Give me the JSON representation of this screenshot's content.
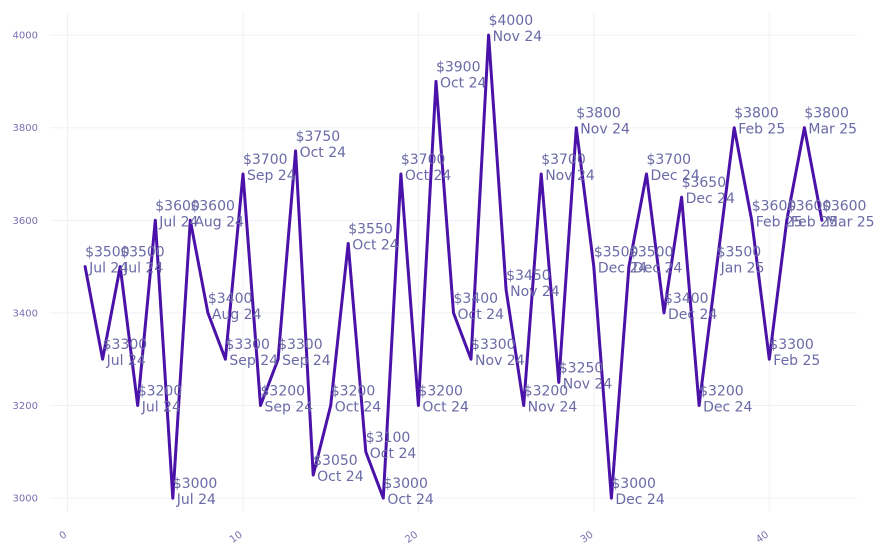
{
  "colors": {
    "line": "#4a12a8",
    "label": "#6b6aa6",
    "tick": "#7a6fb0",
    "grid": "#f0f0f7"
  },
  "chart_data": {
    "type": "line",
    "title": "",
    "xlabel": "",
    "ylabel": "",
    "xlim": [
      -1,
      45
    ],
    "ylim": [
      2970,
      4050
    ],
    "grid": true,
    "legend": "none",
    "x_ticks": [
      0,
      10,
      20,
      30,
      40
    ],
    "y_ticks": [
      3000,
      3200,
      3400,
      3600,
      3800,
      4000
    ],
    "series": [
      {
        "points": [
          {
            "x": 1,
            "y": 3500,
            "value_label": "$3500",
            "date_label": "Jul 24"
          },
          {
            "x": 2,
            "y": 3300,
            "value_label": "$3300",
            "date_label": "Jul 24"
          },
          {
            "x": 3,
            "y": 3500,
            "value_label": "$3500",
            "date_label": "Jul 24"
          },
          {
            "x": 4,
            "y": 3200,
            "value_label": "$3200",
            "date_label": "Jul 24"
          },
          {
            "x": 5,
            "y": 3600,
            "value_label": "$3600",
            "date_label": "Jul 24"
          },
          {
            "x": 6,
            "y": 3000,
            "value_label": "$3000",
            "date_label": "Jul 24"
          },
          {
            "x": 7,
            "y": 3600,
            "value_label": "$3600",
            "date_label": "Aug 24"
          },
          {
            "x": 8,
            "y": 3400,
            "value_label": "$3400",
            "date_label": "Aug 24"
          },
          {
            "x": 9,
            "y": 3300,
            "value_label": "$3300",
            "date_label": "Sep 24"
          },
          {
            "x": 10,
            "y": 3700,
            "value_label": "$3700",
            "date_label": "Sep 24"
          },
          {
            "x": 11,
            "y": 3200,
            "value_label": "$3200",
            "date_label": "Sep 24"
          },
          {
            "x": 12,
            "y": 3300,
            "value_label": "$3300",
            "date_label": "Sep 24"
          },
          {
            "x": 13,
            "y": 3750,
            "value_label": "$3750",
            "date_label": "Oct 24"
          },
          {
            "x": 14,
            "y": 3050,
            "value_label": "$3050",
            "date_label": "Oct 24"
          },
          {
            "x": 15,
            "y": 3200,
            "value_label": "$3200",
            "date_label": "Oct 24"
          },
          {
            "x": 16,
            "y": 3550,
            "value_label": "$3550",
            "date_label": "Oct 24"
          },
          {
            "x": 17,
            "y": 3100,
            "value_label": "$3100",
            "date_label": "Oct 24"
          },
          {
            "x": 18,
            "y": 3000,
            "value_label": "$3000",
            "date_label": "Oct 24"
          },
          {
            "x": 19,
            "y": 3700,
            "value_label": "$3700",
            "date_label": "Oct 24"
          },
          {
            "x": 20,
            "y": 3200,
            "value_label": "$3200",
            "date_label": "Oct 24"
          },
          {
            "x": 21,
            "y": 3900,
            "value_label": "$3900",
            "date_label": "Oct 24"
          },
          {
            "x": 22,
            "y": 3400,
            "value_label": "$3400",
            "date_label": "Oct 24"
          },
          {
            "x": 23,
            "y": 3300,
            "value_label": "$3300",
            "date_label": "Nov 24"
          },
          {
            "x": 24,
            "y": 4000,
            "value_label": "$4000",
            "date_label": "Nov 24"
          },
          {
            "x": 25,
            "y": 3450,
            "value_label": "$3450",
            "date_label": "Nov 24"
          },
          {
            "x": 26,
            "y": 3200,
            "value_label": "$3200",
            "date_label": "Nov 24"
          },
          {
            "x": 27,
            "y": 3700,
            "value_label": "$3700",
            "date_label": "Nov 24"
          },
          {
            "x": 28,
            "y": 3250,
            "value_label": "$3250",
            "date_label": "Nov 24"
          },
          {
            "x": 29,
            "y": 3800,
            "value_label": "$3800",
            "date_label": "Nov 24"
          },
          {
            "x": 30,
            "y": 3500,
            "value_label": "$3500",
            "date_label": "Dec 24"
          },
          {
            "x": 31,
            "y": 3000,
            "value_label": "$3000",
            "date_label": "Dec 24"
          },
          {
            "x": 32,
            "y": 3500,
            "value_label": "$3500",
            "date_label": "Dec 24"
          },
          {
            "x": 33,
            "y": 3700,
            "value_label": "$3700",
            "date_label": "Dec 24"
          },
          {
            "x": 34,
            "y": 3400,
            "value_label": "$3400",
            "date_label": "Dec 24"
          },
          {
            "x": 35,
            "y": 3650,
            "value_label": "$3650",
            "date_label": "Dec 24"
          },
          {
            "x": 36,
            "y": 3200,
            "value_label": "$3200",
            "date_label": "Dec 24"
          },
          {
            "x": 37,
            "y": 3500,
            "value_label": "$3500",
            "date_label": "Jan 25"
          },
          {
            "x": 38,
            "y": 3800,
            "value_label": "$3800",
            "date_label": "Feb 25"
          },
          {
            "x": 39,
            "y": 3600,
            "value_label": "$3600",
            "date_label": "Feb 25"
          },
          {
            "x": 40,
            "y": 3300,
            "value_label": "$3300",
            "date_label": "Feb 25"
          },
          {
            "x": 41,
            "y": 3600,
            "value_label": "$3600",
            "date_label": "Feb 25"
          },
          {
            "x": 42,
            "y": 3800,
            "value_label": "$3800",
            "date_label": "Mar 25"
          },
          {
            "x": 43,
            "y": 3600,
            "value_label": "$3600",
            "date_label": "Mar 25"
          }
        ]
      }
    ]
  }
}
